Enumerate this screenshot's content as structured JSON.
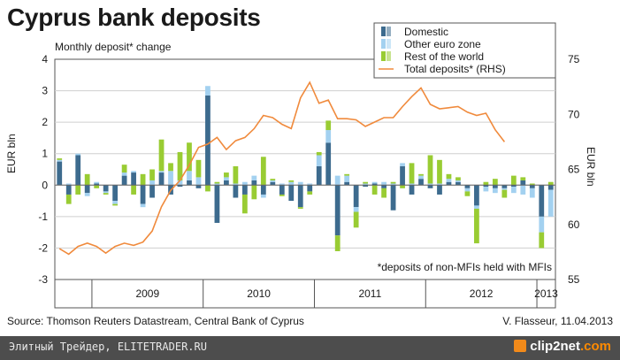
{
  "title": "Cyprus bank deposits",
  "subtitle": "Monthly deposit* change",
  "footnote": "*deposits of non-MFIs held with MFIs",
  "source": "Source: Thomson Reuters Datastream, Central Bank of Cyprus",
  "author": "V. Flasseur, 11.04.2013",
  "bottom_text": "Элитный Трейдер, ELITETRADER.RU",
  "brand": {
    "name": "clip2net",
    "suffix": ".com"
  },
  "colors": {
    "domestic": "#3d6b8e",
    "other_euro": "#a3d1f0",
    "rest_world": "#99cc33",
    "total_line": "#f08a3c",
    "plot_bg": "#ffffff"
  },
  "chart_data": {
    "type": "bar",
    "stacked": true,
    "xlabel": "",
    "ylabel_left": "EUR bln",
    "ylabel_right": "EUR bln",
    "ylim_left": [
      -3,
      4
    ],
    "ylim_right": [
      55,
      75
    ],
    "yticks_left": [
      "4",
      "3",
      "2",
      "1",
      "0",
      "-1",
      "-2",
      "-3"
    ],
    "yticks_right": [
      "75",
      "70",
      "65",
      "60",
      "55"
    ],
    "grid": true,
    "legend_position": "top-right",
    "x_groups": [
      "2009",
      "2010",
      "2011",
      "2012",
      "2013"
    ],
    "months": [
      "2008-09",
      "2008-10",
      "2008-11",
      "2008-12",
      "2009-01",
      "2009-02",
      "2009-03",
      "2009-04",
      "2009-05",
      "2009-06",
      "2009-07",
      "2009-08",
      "2009-09",
      "2009-10",
      "2009-11",
      "2009-12",
      "2010-01",
      "2010-02",
      "2010-03",
      "2010-04",
      "2010-05",
      "2010-06",
      "2010-07",
      "2010-08",
      "2010-09",
      "2010-10",
      "2010-11",
      "2010-12",
      "2011-01",
      "2011-02",
      "2011-03",
      "2011-04",
      "2011-05",
      "2011-06",
      "2011-07",
      "2011-08",
      "2011-09",
      "2011-10",
      "2011-11",
      "2011-12",
      "2012-01",
      "2012-02",
      "2012-03",
      "2012-04",
      "2012-05",
      "2012-06",
      "2012-07",
      "2012-08",
      "2012-09",
      "2012-10",
      "2012-11",
      "2012-12",
      "2013-01",
      "2013-02"
    ],
    "series": [
      {
        "name": "Domestic",
        "values": [
          0.75,
          -0.3,
          0.95,
          -0.25,
          0.05,
          -0.2,
          -0.5,
          0.3,
          0.4,
          -0.6,
          -0.4,
          0.4,
          -0.3,
          -0.05,
          0.15,
          -0.1,
          2.85,
          -1.2,
          0.15,
          -0.4,
          -0.3,
          0.15,
          -0.3,
          0.1,
          -0.3,
          -0.5,
          -0.7,
          -0.2,
          0.6,
          1.35,
          -1.6,
          0.1,
          -0.7,
          -0.05,
          0.05,
          -0.1,
          -0.8,
          0.6,
          -0.3,
          0.2,
          -0.1,
          -0.3,
          0.1,
          0.1,
          -0.1,
          -0.65,
          -0.05,
          -0.1,
          -0.1,
          -0.05,
          0.15,
          -0.1,
          -1.0,
          -0.15
        ]
      },
      {
        "name": "Other euro zone",
        "values": [
          0.05,
          0.05,
          0.05,
          -0.1,
          0.05,
          -0.05,
          -0.1,
          0.1,
          0.05,
          -0.1,
          0.15,
          0.05,
          0.45,
          0.15,
          0.3,
          0.25,
          0.3,
          0.05,
          0.1,
          0.05,
          0.1,
          0.15,
          -0.1,
          0.05,
          0.05,
          0.1,
          0.1,
          0.05,
          0.35,
          0.4,
          0.3,
          0.2,
          -0.15,
          0.05,
          0.05,
          0.1,
          0.05,
          0.1,
          0.05,
          0.1,
          0.05,
          0.05,
          0.1,
          0.05,
          -0.1,
          -0.1,
          -0.15,
          -0.15,
          -0.05,
          -0.2,
          -0.3,
          -0.3,
          -0.5,
          -0.85
        ]
      },
      {
        "name": "Rest of the world",
        "values": [
          0.05,
          -0.3,
          -0.3,
          0.35,
          -0.1,
          -0.05,
          -0.05,
          0.25,
          -0.3,
          0.35,
          0.35,
          1.0,
          0.25,
          0.9,
          0.9,
          0.55,
          -0.2,
          0.05,
          0.15,
          0.55,
          -0.6,
          -0.45,
          0.9,
          0.05,
          -0.05,
          0.05,
          -0.05,
          -0.1,
          0.1,
          0.3,
          -0.5,
          0.05,
          -0.5,
          0.05,
          -0.3,
          -0.3,
          0.05,
          -0.1,
          0.65,
          0.05,
          0.9,
          0.75,
          0.15,
          0.1,
          -0.15,
          -1.1,
          0.1,
          0.2,
          -0.25,
          0.3,
          0.1,
          0.05,
          -0.5,
          0.1
        ]
      },
      {
        "name": "Total deposits* (RHS)",
        "axis": "right",
        "values": [
          57.8,
          57.3,
          58.0,
          58.3,
          58.0,
          57.4,
          58.0,
          58.3,
          58.1,
          58.4,
          59.4,
          61.6,
          63.1,
          64.0,
          65.4,
          67.0,
          67.3,
          67.9,
          66.8,
          67.6,
          67.9,
          68.7,
          69.9,
          69.7,
          69.1,
          68.7,
          71.5,
          72.9,
          71.0,
          71.3,
          69.6,
          69.6,
          69.5,
          68.9,
          69.3,
          69.7,
          69.7,
          70.7,
          71.6,
          72.4,
          70.9,
          70.5,
          70.6,
          70.7,
          70.2,
          69.9,
          70.1,
          68.6,
          67.5,
          null,
          null,
          null,
          null,
          null
        ]
      }
    ]
  }
}
